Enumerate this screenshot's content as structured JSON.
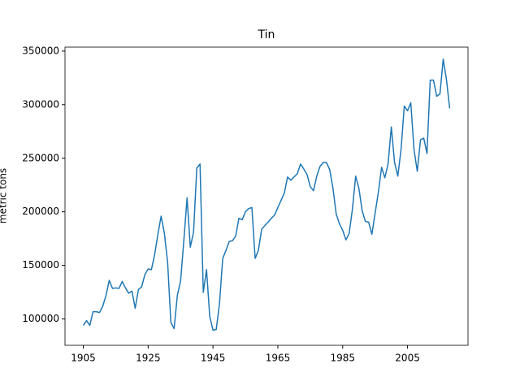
{
  "chart_data": {
    "type": "line",
    "title": "Tin",
    "ylabel": "metric tons",
    "x": [
      1905,
      1906,
      1907,
      1908,
      1909,
      1910,
      1911,
      1912,
      1913,
      1914,
      1915,
      1916,
      1917,
      1918,
      1919,
      1920,
      1921,
      1922,
      1923,
      1924,
      1925,
      1926,
      1927,
      1928,
      1929,
      1930,
      1931,
      1932,
      1933,
      1934,
      1935,
      1936,
      1937,
      1938,
      1939,
      1940,
      1941,
      1942,
      1943,
      1944,
      1945,
      1946,
      1947,
      1948,
      1949,
      1950,
      1951,
      1952,
      1953,
      1954,
      1955,
      1956,
      1957,
      1958,
      1959,
      1960,
      1961,
      1962,
      1963,
      1964,
      1965,
      1966,
      1967,
      1968,
      1969,
      1970,
      1971,
      1972,
      1973,
      1974,
      1975,
      1976,
      1977,
      1978,
      1979,
      1980,
      1981,
      1982,
      1983,
      1984,
      1985,
      1986,
      1987,
      1988,
      1989,
      1990,
      1991,
      1992,
      1993,
      1994,
      1995,
      1996,
      1997,
      1998,
      1999,
      2000,
      2001,
      2002,
      2003,
      2004,
      2005,
      2006,
      2007,
      2008,
      2009,
      2010,
      2011,
      2012,
      2013,
      2014,
      2015,
      2016,
      2017,
      2018
    ],
    "series": [
      {
        "name": "Tin",
        "color": "#1f77b4",
        "values": [
          94000,
          98500,
          94000,
          106800,
          106800,
          106000,
          112000,
          122000,
          136000,
          128500,
          129000,
          128500,
          135000,
          129000,
          124000,
          126000,
          110000,
          127500,
          130000,
          141500,
          146700,
          146000,
          160000,
          179000,
          196000,
          180000,
          153000,
          97000,
          91000,
          122000,
          135400,
          173000,
          213000,
          167000,
          181000,
          240800,
          244600,
          124800,
          146000,
          102300,
          89500,
          90200,
          114300,
          156500,
          164000,
          172300,
          173000,
          177500,
          194000,
          192600,
          200000,
          203000,
          204000,
          156500,
          164000,
          183600,
          187300,
          190400,
          194000,
          197000,
          204000,
          210700,
          217500,
          232500,
          229500,
          232500,
          235500,
          244600,
          240000,
          234800,
          223500,
          219700,
          233300,
          242300,
          246000,
          246000,
          239300,
          222000,
          198000,
          188800,
          182800,
          173800,
          179800,
          202400,
          233300,
          222000,
          201000,
          191000,
          190400,
          179000,
          198600,
          218200,
          241600,
          231800,
          244600,
          279200,
          246000,
          233300,
          258200,
          298800,
          294300,
          301800,
          258200,
          237800,
          267200,
          268700,
          254400,
          322900,
          322900,
          307800,
          310100,
          342500,
          323600,
          296500
        ]
      }
    ],
    "xlim": [
      1899.35,
      2023.65
    ],
    "xticks": [
      1905,
      1925,
      1945,
      1965,
      1985,
      2005
    ],
    "ylim": [
      75400,
      353700
    ],
    "yticks": [
      100000,
      150000,
      200000,
      250000,
      300000,
      350000
    ]
  }
}
